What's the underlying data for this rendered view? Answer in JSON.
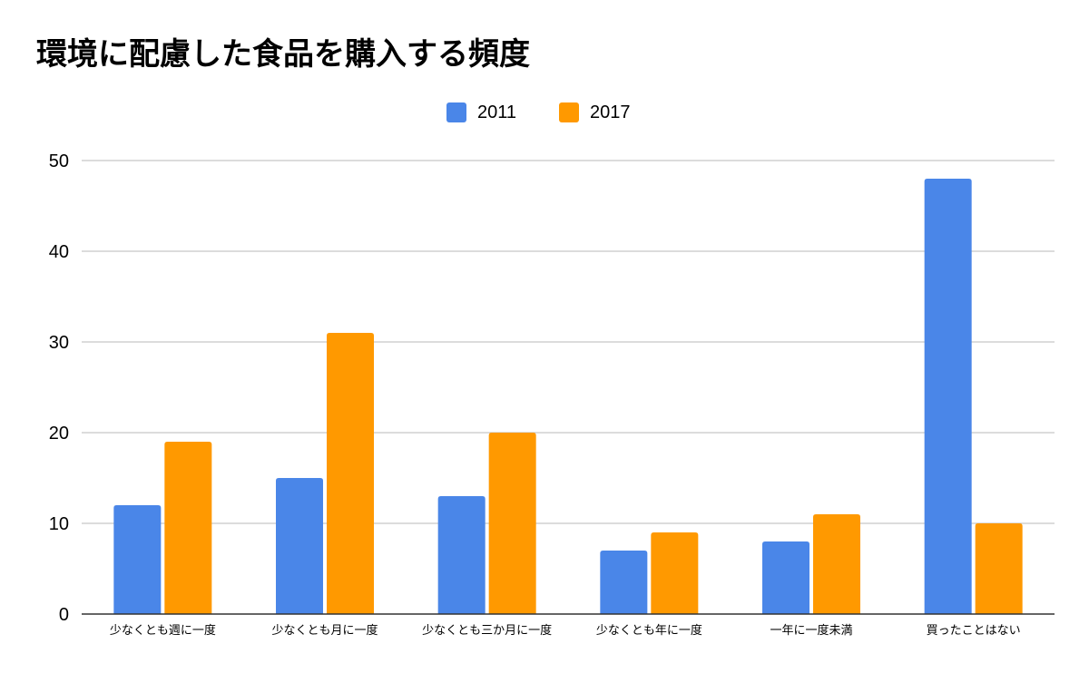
{
  "chart_data": {
    "type": "bar",
    "title": "環境に配慮した食品を購入する頻度",
    "xlabel": "",
    "ylabel": "",
    "categories": [
      "少なくとも週に一度",
      "少なくとも月に一度",
      "少なくとも三か月に一度",
      "少なくとも年に一度",
      "一年に一度未満",
      "買ったことはない"
    ],
    "series": [
      {
        "name": "2011",
        "color": "#4a86e8",
        "values": [
          12,
          15,
          13,
          7,
          8,
          48
        ]
      },
      {
        "name": "2017",
        "color": "#ff9900",
        "values": [
          19,
          31,
          20,
          9,
          11,
          10
        ]
      }
    ],
    "ylim": [
      0,
      50
    ],
    "yticks": [
      0,
      10,
      20,
      30,
      40,
      50
    ],
    "grid": true,
    "legend": "top-center"
  }
}
